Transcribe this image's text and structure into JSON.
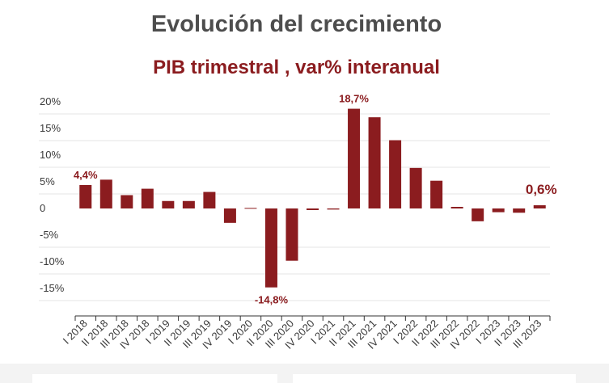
{
  "title": "Evolución del crecimiento",
  "subtitle": "PIB trimestral , var% interanual",
  "colors": {
    "bar": "#8b1c1f",
    "grid": "#e6e6e6",
    "axis_text": "#3a3a3a",
    "annotation": "#8b1c1f"
  },
  "chart_data": {
    "type": "bar",
    "title": "Evolución del crecimiento",
    "subtitle": "PIB trimestral , var% interanual",
    "xlabel": "",
    "ylabel": "",
    "ylim": [
      -20,
      20
    ],
    "yticks": [
      "20%",
      "15%",
      "10%",
      "5%",
      "0",
      "-5%",
      "-10%",
      "-15%"
    ],
    "ytick_values": [
      20,
      15,
      10,
      5,
      0,
      -5,
      -10,
      -15
    ],
    "grid": true,
    "categories": [
      "I 2018",
      "II 2018",
      "III 2018",
      "IV 2018",
      "I 2019",
      "II 2019",
      "III 2019",
      "IV 2019",
      "I 2020",
      "II 2020",
      "III 2020",
      "IV 2020",
      "I 2021",
      "II 2021",
      "III 2021",
      "IV 2021",
      "I 2022",
      "II 2022",
      "III 2022",
      "IV 2022",
      "I 2023",
      "II 2023",
      "III 2023"
    ],
    "values": [
      4.4,
      5.4,
      2.5,
      3.7,
      1.4,
      1.4,
      3.1,
      -2.7,
      0.1,
      -14.8,
      -9.8,
      -0.3,
      -0.2,
      18.7,
      17.1,
      12.8,
      7.6,
      5.2,
      0.3,
      -2.4,
      -0.7,
      -0.8,
      0.6
    ],
    "annotations": [
      {
        "index": 0,
        "label": "4,4%"
      },
      {
        "index": 9,
        "label": "-14,8%"
      },
      {
        "index": 13,
        "label": "18,7%"
      },
      {
        "index": 22,
        "label": "0,6%"
      }
    ]
  }
}
